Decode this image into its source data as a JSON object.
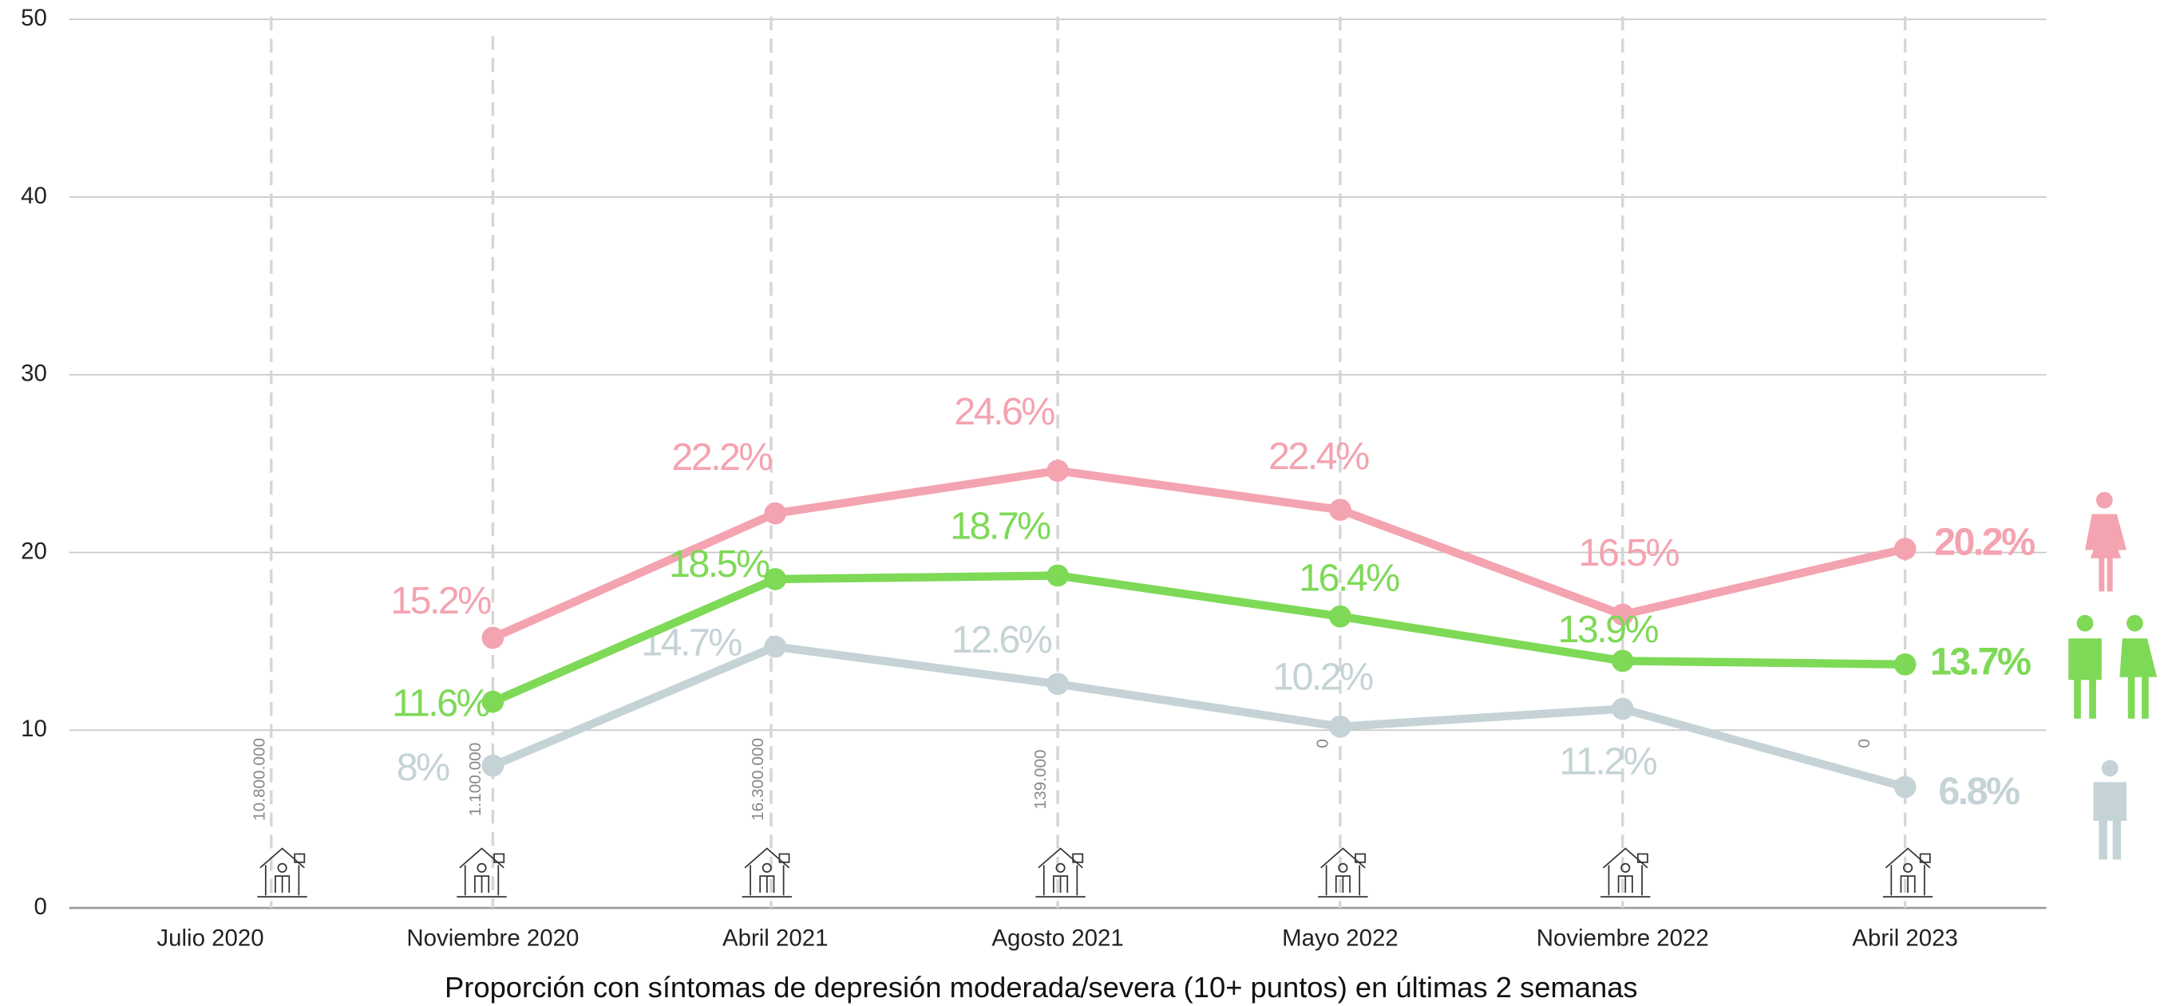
{
  "chart_data": {
    "type": "line",
    "xlabel": "Proporción con síntomas de depresión moderada/severa (10+ puntos) en últimas 2 semanas",
    "categories": [
      "Julio 2020",
      "Noviembre 2020",
      "Abril 2021",
      "Agosto 2021",
      "Mayo 2022",
      "Noviembre 2022",
      "Abril 2023"
    ],
    "series": [
      {
        "color": "#f4a3b0",
        "values": [
          null,
          15.2,
          22.2,
          24.6,
          22.4,
          16.5,
          20.2
        ],
        "value_labels": [
          null,
          "15.2%",
          "22.2%",
          "24.6%",
          "22.4%",
          "16.5%",
          "20.2%"
        ]
      },
      {
        "color": "#7ed957",
        "values": [
          null,
          11.6,
          18.5,
          18.7,
          16.4,
          13.9,
          13.7
        ],
        "value_labels": [
          null,
          "11.6%",
          "18.5%",
          "18.7%",
          "16.4%",
          "13.9%",
          "13.7%"
        ]
      },
      {
        "color": "#c5d3d6",
        "values": [
          null,
          8,
          14.7,
          12.6,
          10.2,
          11.2,
          6.8
        ],
        "value_labels": [
          null,
          "8%",
          "14.7%",
          "12.6%",
          "10.2%",
          "11.2%",
          "6.8%"
        ]
      }
    ],
    "annotations": [
      "10.800.000",
      "1.100.000",
      "16.300.000",
      "139.000",
      "0",
      null,
      "0"
    ],
    "ylim": [
      0,
      50
    ],
    "yticks": [
      0,
      10,
      20,
      30,
      40,
      50
    ],
    "grid": true
  }
}
